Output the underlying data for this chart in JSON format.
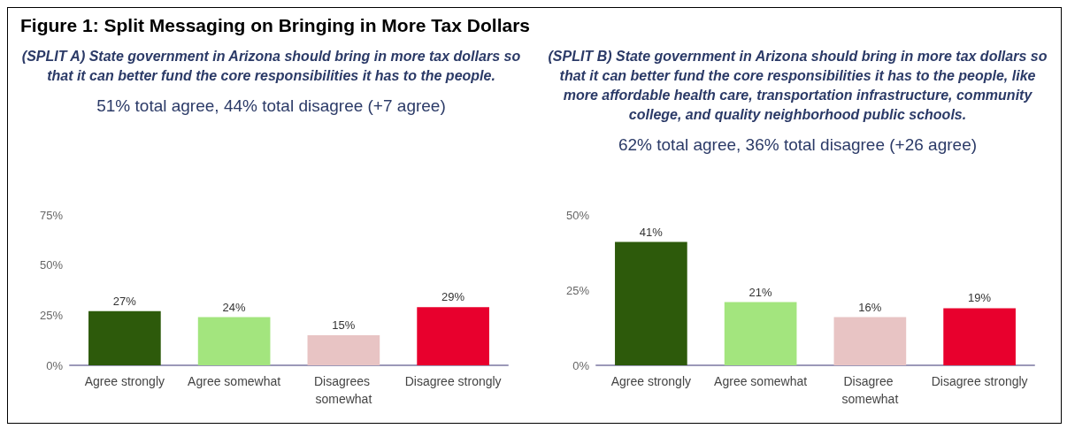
{
  "chart_data": [
    {
      "type": "bar",
      "title": "Figure 1: Split Messaging on Bringing in More Tax Dollars",
      "subtitle": "(SPLIT A) State government in Arizona should bring in more tax dollars so that it can better fund the core responsibilities it has to the people.",
      "annotations": [
        "51% total agree, 44% total disagree (+7 agree)"
      ],
      "categories": [
        "Agree strongly",
        "Agree somewhat",
        "Disagrees somewhat",
        "Disagree strongly"
      ],
      "values": [
        27,
        24,
        15,
        29
      ],
      "value_labels": [
        "27%",
        "24%",
        "15%",
        "29%"
      ],
      "colors": [
        "#2d5a0b",
        "#a3e57e",
        "#e8c4c4",
        "#e8002d"
      ],
      "ylim": [
        0,
        75
      ],
      "yticks": [
        {
          "value": 0,
          "label": "0%"
        },
        {
          "value": 25,
          "label": "25%"
        },
        {
          "value": 50,
          "label": "50%"
        },
        {
          "value": 75,
          "label": "75%"
        }
      ],
      "grid": false
    },
    {
      "type": "bar",
      "subtitle": "(SPLIT B) State government in Arizona should bring in more tax dollars so that it can better fund the core responsibilities it has to the people, like more affordable health care, transportation infrastructure, community college, and quality neighborhood public schools.",
      "annotations": [
        "62% total agree, 36% total disagree (+26 agree)"
      ],
      "categories": [
        "Agree strongly",
        "Agree somewhat",
        "Disagree somewhat",
        "Disagree strongly"
      ],
      "values": [
        41,
        21,
        16,
        19
      ],
      "value_labels": [
        "41%",
        "21%",
        "16%",
        "19%"
      ],
      "colors": [
        "#2d5a0b",
        "#a3e57e",
        "#e8c4c4",
        "#e8002d"
      ],
      "ylim": [
        0,
        50
      ],
      "yticks": [
        {
          "value": 0,
          "label": "0%"
        },
        {
          "value": 25,
          "label": "25%"
        },
        {
          "value": 50,
          "label": "50%"
        }
      ],
      "grid": false
    }
  ]
}
